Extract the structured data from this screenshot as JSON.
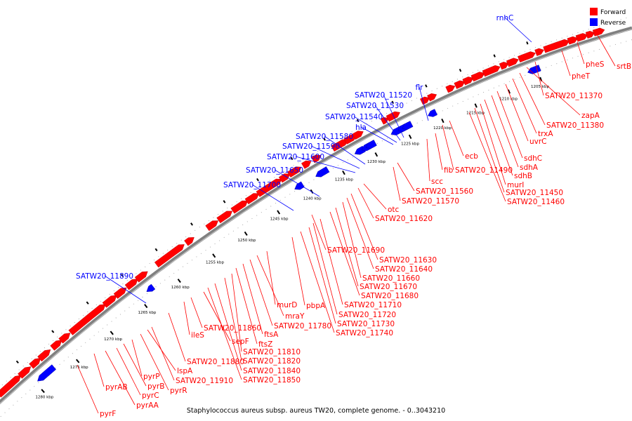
{
  "caption": "Staphylococcus aureus subsp. aureus TW20, complete genome. - 0..3043210",
  "legend": [
    {
      "label": "Forward",
      "color": "#ff0000"
    },
    {
      "label": "Reverse",
      "color": "#0000ff"
    }
  ],
  "colors": {
    "forward": "#ff0000",
    "reverse": "#0000ff",
    "backbone": "#808080"
  },
  "ticks": [
    "1205 kbp",
    "1210 kbp",
    "1215 kbp",
    "1220 kbp",
    "1225 kbp",
    "1230 kbp",
    "1235 kbp",
    "1240 kbp",
    "1245 kbp",
    "1250 kbp",
    "1255 kbp",
    "1260 kbp",
    "1265 kbp",
    "1270 kbp",
    "1275 kbp",
    "1280 kbp"
  ],
  "reverse_genes": [
    "rnhC",
    "flr",
    "SATW20_11520",
    "SATW20_11530",
    "SATW20_11540",
    "hla",
    "SATW20_11580",
    "SATW20_11590",
    "SATW20_11600",
    "SATW20_11650",
    "SATW20_11700",
    "SATW20_11890"
  ],
  "forward_genes": [
    "srtB",
    "pheS",
    "pheT",
    "SATW20_11370",
    "zapA",
    "SATW20_11380",
    "trxA",
    "uvrC",
    "sdhC",
    "sdhA",
    "sdhB",
    "murI",
    "SATW20_11450",
    "SATW20_11460",
    "ecb",
    "SATW20_11490",
    "fib",
    "scc",
    "SATW20_11560",
    "SATW20_11570",
    "otc",
    "SATW20_11620",
    "SATW20_11690",
    "SATW20_11630",
    "SATW20_11640",
    "SATW20_11660",
    "SATW20_11670",
    "SATW20_11680",
    "SATW20_11710",
    "SATW20_11720",
    "SATW20_11730",
    "SATW20_11740",
    "pbpA",
    "murD",
    "mraY",
    "SATW20_11780",
    "ftsA",
    "ftsZ",
    "SATW20_11810",
    "SATW20_11820",
    "SATW20_11840",
    "SATW20_11850",
    "sepF",
    "SATW20_11860",
    "ileS",
    "SATW20_11880",
    "SATW20_11910",
    "lspA",
    "pyrR",
    "pyrP",
    "pyrB",
    "pyrC",
    "pyrAB",
    "pyrAA",
    "pyrF"
  ]
}
